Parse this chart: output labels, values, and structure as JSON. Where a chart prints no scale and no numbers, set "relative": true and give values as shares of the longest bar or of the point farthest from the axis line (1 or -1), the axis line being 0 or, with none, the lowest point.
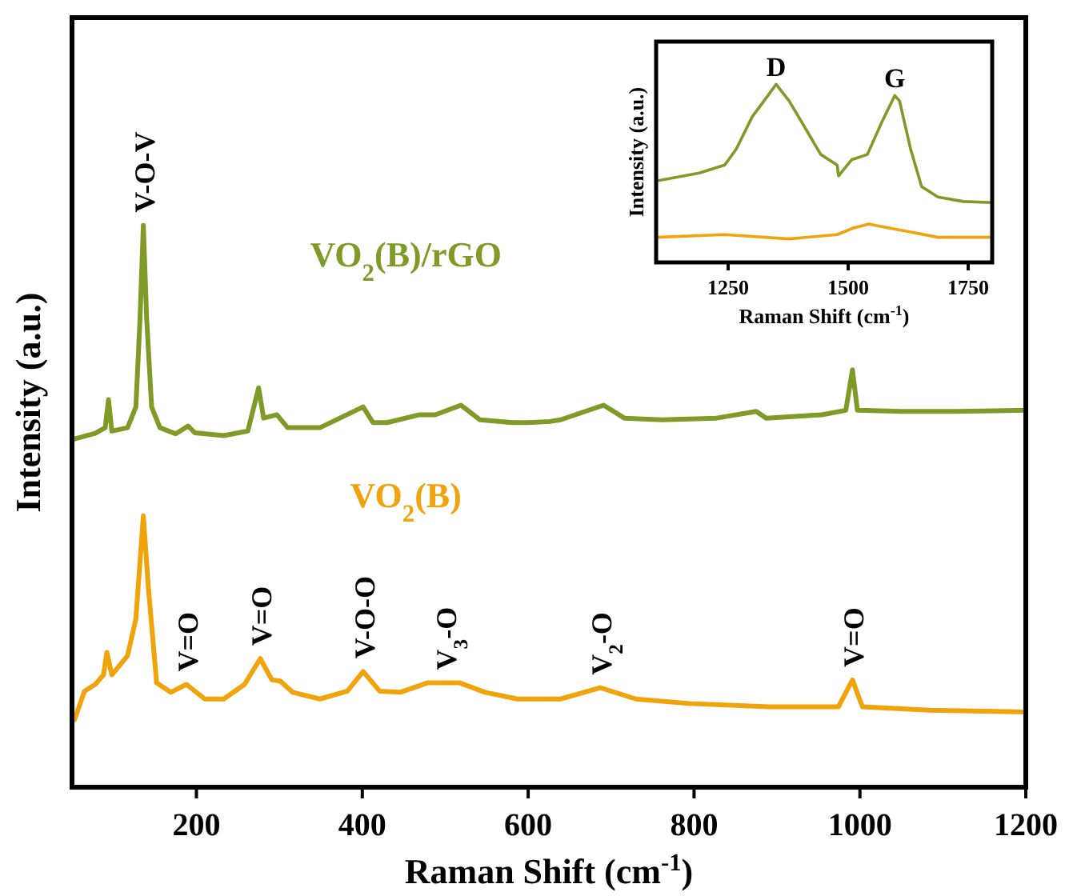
{
  "chart_data": [
    {
      "type": "line",
      "xlabel": "Raman Shift (cm$^{-1}$)",
      "ylabel": "Intensity (a.u.)",
      "xlim": [
        50,
        1200
      ],
      "xticks": [
        200,
        400,
        600,
        800,
        1000,
        1200
      ],
      "relative": true,
      "tick_labels": "x",
      "series": [
        {
          "name": "VO$_{2}$(B)/rGO",
          "color": "#7f9a26",
          "x": [
            53,
            78,
            90,
            94,
            98,
            117,
            127,
            132,
            136,
            140,
            146,
            156,
            175,
            190,
            198,
            233,
            262,
            275,
            281,
            297,
            310,
            349,
            401,
            413,
            430,
            469,
            488,
            519,
            542,
            581,
            600,
            626,
            639,
            691,
            716,
            761,
            827,
            875,
            887,
            954,
            983,
            991,
            997,
            1051,
            1117,
            1200
          ],
          "values": [
            0.62,
            0.63,
            0.64,
            0.69,
            0.634,
            0.64,
            0.677,
            0.834,
            1,
            0.834,
            0.677,
            0.64,
            0.629,
            0.643,
            0.631,
            0.626,
            0.634,
            0.711,
            0.657,
            0.663,
            0.64,
            0.64,
            0.677,
            0.649,
            0.649,
            0.663,
            0.663,
            0.68,
            0.654,
            0.649,
            0.649,
            0.651,
            0.654,
            0.68,
            0.657,
            0.654,
            0.657,
            0.669,
            0.657,
            0.663,
            0.671,
            0.743,
            0.671,
            0.669,
            0.669,
            0.671
          ]
        },
        {
          "name": "VO$_{2}$(B)",
          "color": "#f0a30a",
          "x": [
            53,
            65,
            78,
            88,
            92,
            98,
            117,
            127,
            136,
            142,
            152,
            169,
            188,
            210,
            233,
            258,
            277,
            291,
            301,
            316,
            349,
            382,
            401,
            421,
            446,
            479,
            517,
            548,
            587,
            639,
            687,
            730,
            794,
            891,
            974,
            991,
            1003,
            1084,
            1200
          ],
          "values": [
            0.12,
            0.171,
            0.183,
            0.2,
            0.24,
            0.2,
            0.234,
            0.3,
            0.483,
            0.357,
            0.186,
            0.169,
            0.183,
            0.157,
            0.157,
            0.183,
            0.229,
            0.191,
            0.189,
            0.169,
            0.157,
            0.171,
            0.206,
            0.171,
            0.169,
            0.186,
            0.186,
            0.169,
            0.157,
            0.157,
            0.177,
            0.157,
            0.149,
            0.143,
            0.143,
            0.191,
            0.143,
            0.137,
            0.134
          ]
        }
      ],
      "annotations": [
        {
          "text": "V-O-V",
          "x": 136,
          "y": 1
        },
        {
          "text": "V=O",
          "x": 188,
          "y": 0.183
        },
        {
          "text": "V=O",
          "x": 277,
          "y": 0.229
        },
        {
          "text": "V-O-O",
          "x": 401,
          "y": 0.206
        },
        {
          "text": "V$_{3}$-O",
          "x": 500,
          "y": 0.186
        },
        {
          "text": "V$_{2}$-O",
          "x": 687,
          "y": 0.177
        },
        {
          "text": "V=O",
          "x": 991,
          "y": 0.191
        }
      ]
    },
    {
      "type": "line",
      "xlabel": "Raman Shift (cm$^{-1}$)",
      "ylabel": "Intensity (a.u.)",
      "xlim": [
        1100,
        1800
      ],
      "xticks": [
        1250,
        1500,
        1750
      ],
      "relative": true,
      "tick_labels": "x",
      "series": [
        {
          "color": "#7f9a26",
          "x": [
            1100,
            1190,
            1243,
            1267,
            1300,
            1333,
            1350,
            1377,
            1410,
            1443,
            1477,
            1480,
            1507,
            1540,
            1570,
            1597,
            1607,
            1630,
            1653,
            1687,
            1740,
            1800
          ],
          "values": [
            0.457,
            0.502,
            0.547,
            0.637,
            0.817,
            0.937,
            1,
            0.907,
            0.757,
            0.606,
            0.547,
            0.486,
            0.576,
            0.606,
            0.787,
            0.937,
            0.907,
            0.637,
            0.426,
            0.367,
            0.342,
            0.336
          ]
        },
        {
          "color": "#f0a30a",
          "x": [
            1100,
            1243,
            1377,
            1477,
            1510,
            1543,
            1570,
            1630,
            1687,
            1800
          ],
          "values": [
            0.141,
            0.156,
            0.132,
            0.156,
            0.192,
            0.216,
            0.201,
            0.171,
            0.141,
            0.141
          ]
        }
      ],
      "annotations": [
        {
          "text": "D",
          "x": 1350,
          "y": 1
        },
        {
          "text": "G",
          "x": 1597,
          "y": 0.937
        }
      ]
    }
  ]
}
